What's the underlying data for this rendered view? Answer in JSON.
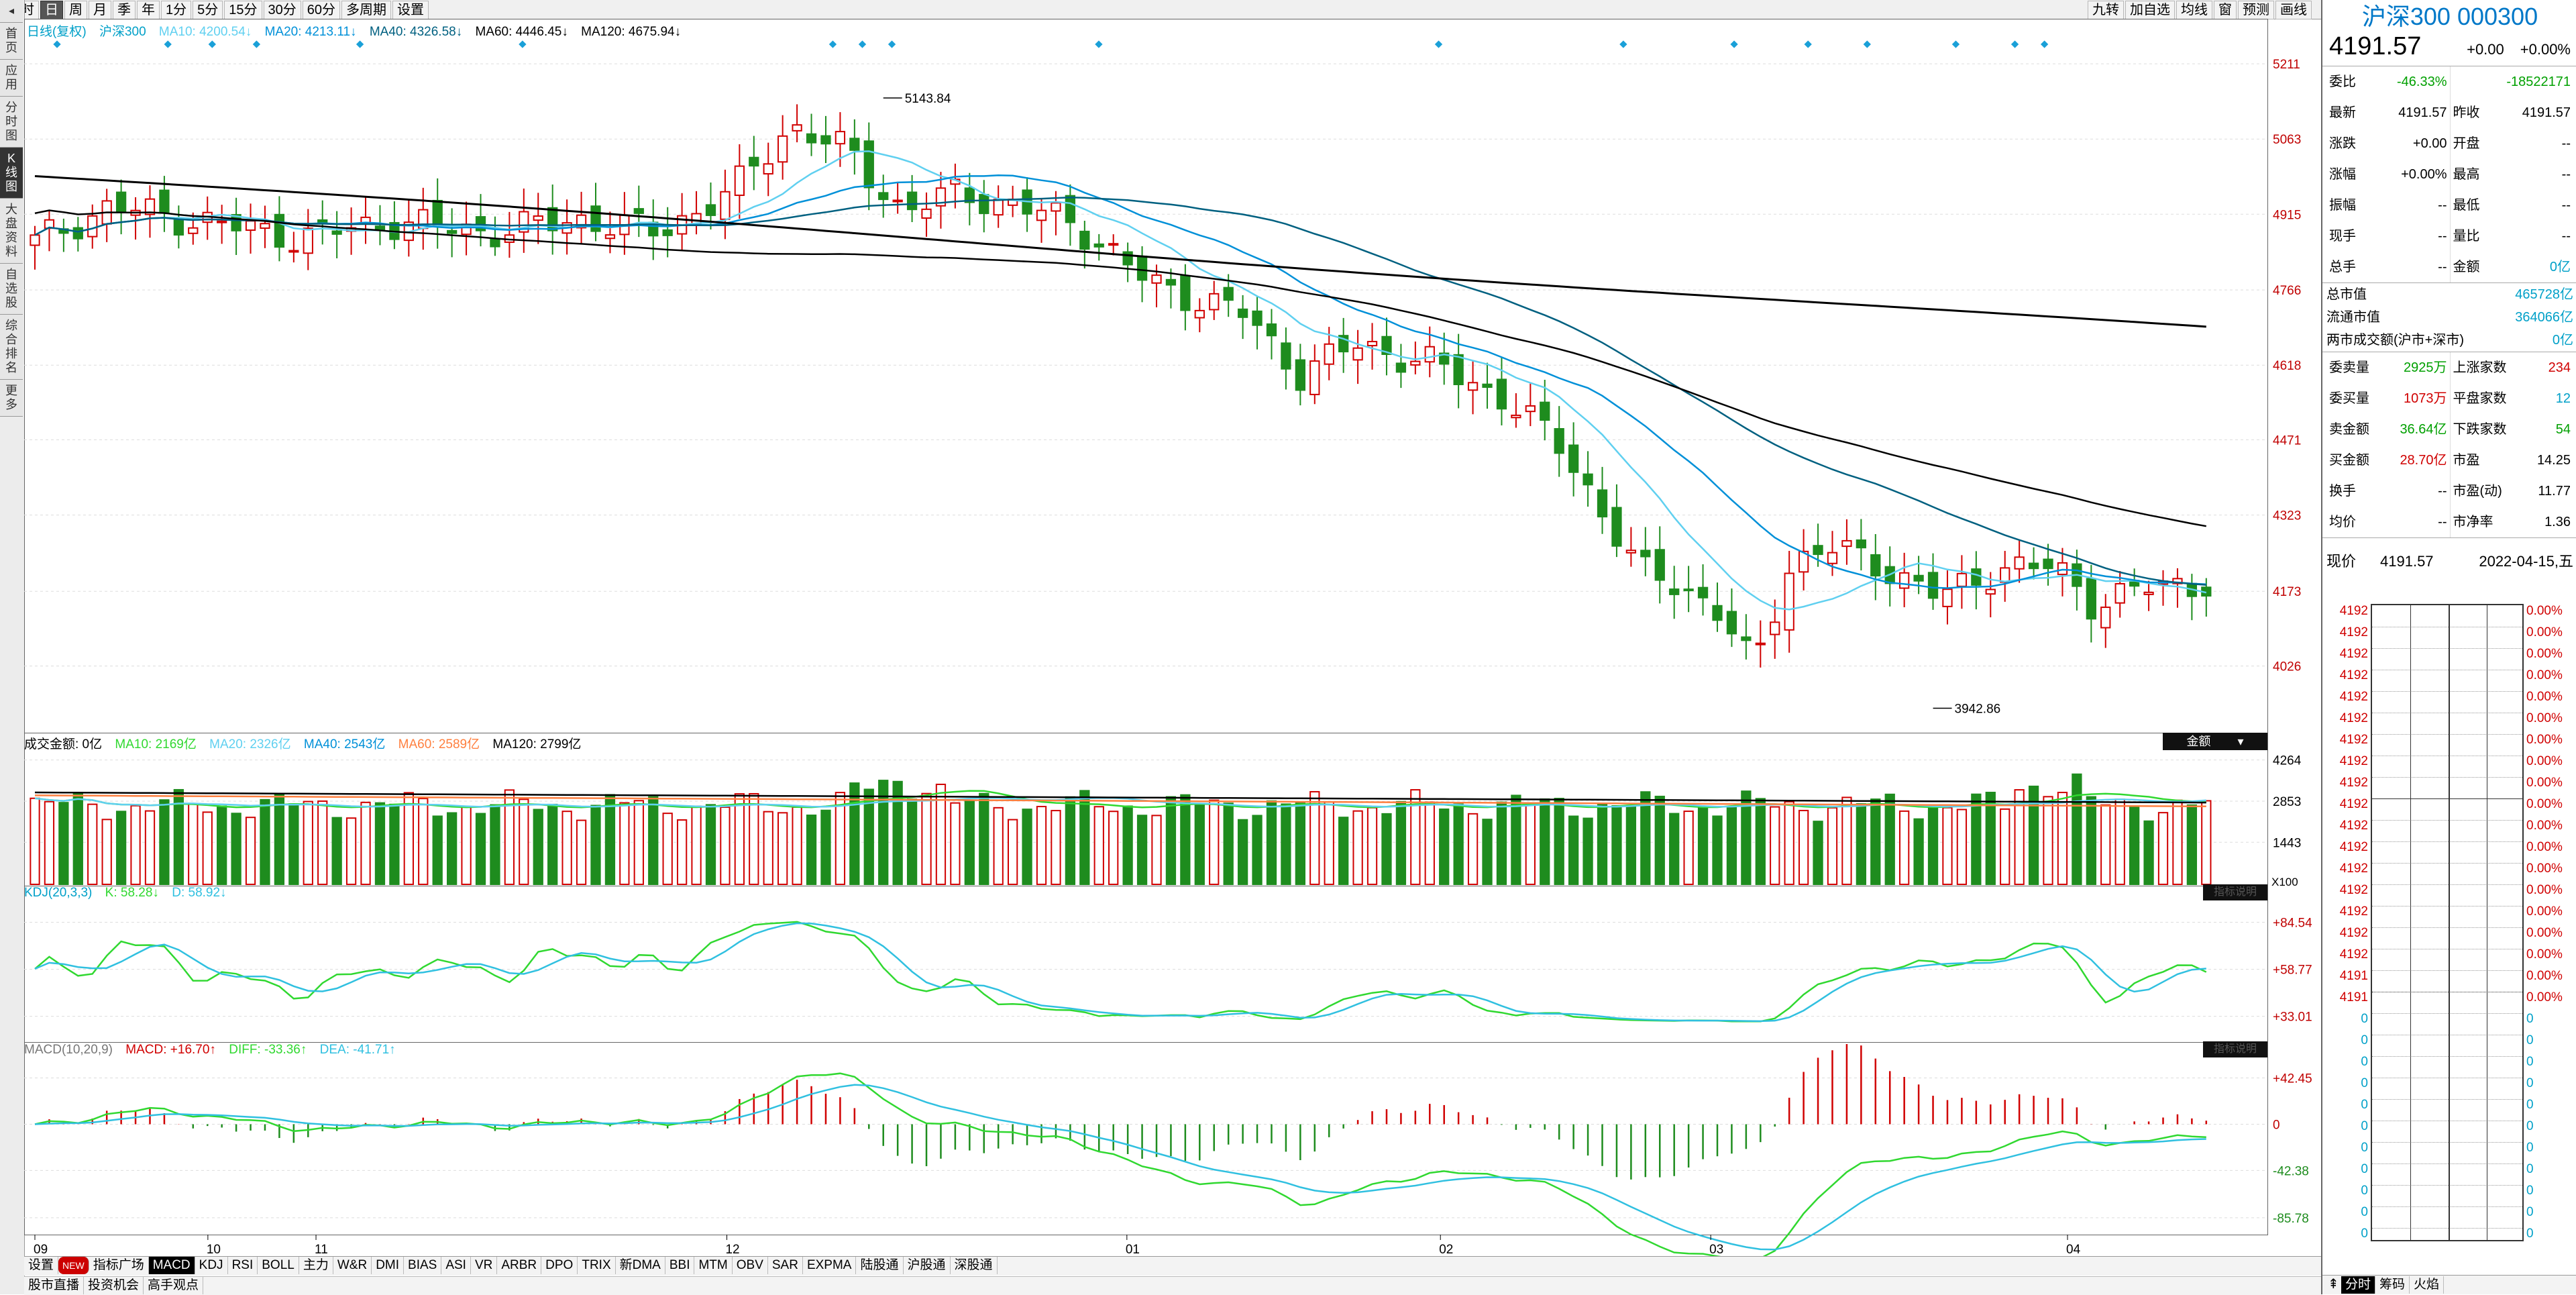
{
  "toolbar": {
    "buttons": [
      "分时",
      "日",
      "周",
      "月",
      "季",
      "年",
      "1分",
      "5分",
      "15分",
      "30分",
      "60分",
      "多周期",
      "设置"
    ],
    "selected": "日",
    "right_buttons": [
      "九转",
      "加自选",
      "均线",
      "窗",
      "预测",
      "画线"
    ]
  },
  "left_nav": [
    "首页",
    "应用",
    "分时图",
    "K线图",
    "大盘资料",
    "自选股",
    "综合排名",
    "更多"
  ],
  "left_nav_selected": "K线图",
  "main_legend": {
    "title": "日线(复权)",
    "name": "沪深300",
    "ma10": "MA10: 4200.54↓",
    "ma20": "MA20: 4213.11↓",
    "ma40": "MA40: 4326.58↓",
    "ma60": "MA60: 4446.45↓",
    "ma120": "MA120: 4675.94↓"
  },
  "price_axis": [
    "5211",
    "5063",
    "4915",
    "4766",
    "4618",
    "4471",
    "4323",
    "4173",
    "4026"
  ],
  "annotations": {
    "high": "5143.84",
    "low": "3942.86"
  },
  "volume_legend": {
    "label": "成交金额: 0亿",
    "ma10": "MA10: 2169亿",
    "ma20": "MA20: 2326亿",
    "ma40": "MA40: 2543亿",
    "ma60": "MA60: 2589亿",
    "ma120": "MA120: 2799亿",
    "dropdown": "金额"
  },
  "volume_axis": [
    "4264",
    "2853",
    "1443"
  ],
  "volume_unit": "X100",
  "kdj_legend": {
    "title": "KDJ(20,3,3)",
    "k": "K: 58.28↓",
    "d": "D: 58.92↓"
  },
  "kdj_axis": [
    "+84.54",
    "+58.77",
    "+33.01"
  ],
  "macd_legend": {
    "title": "MACD(10,20,9)",
    "macd": "MACD: +16.70↑",
    "diff": "DIFF: -33.36↑",
    "dea": "DEA: -41.71↑"
  },
  "macd_axis": [
    "+42.45",
    "0",
    "-42.38",
    "-85.78"
  ],
  "indicator_tag": "指标说明",
  "time_axis": [
    "09",
    "10",
    "11",
    "12",
    "01",
    "02",
    "03",
    "04"
  ],
  "bottom_tabs": [
    "设置",
    "NEW",
    "指标广场",
    "MACD",
    "KDJ",
    "RSI",
    "BOLL",
    "主力",
    "W&R",
    "DMI",
    "BIAS",
    "ASI",
    "VR",
    "ARBR",
    "DPO",
    "TRIX",
    "新DMA",
    "BBI",
    "MTM",
    "OBV",
    "SAR",
    "EXPMA",
    "陆股通",
    "沪股通",
    "深股通"
  ],
  "bottom_selected": "MACD",
  "status_tabs": [
    "股市直播",
    "投资机会",
    "高手观点"
  ],
  "stock": {
    "title": "沪深300 000300",
    "price": "4191.57",
    "change": "+0.00",
    "pct": "+0.00%"
  },
  "quote_rows": [
    [
      {
        "l": "委比",
        "v": "-46.33%",
        "c": "green"
      },
      {
        "l": "",
        "v": "-18522171",
        "c": "green"
      }
    ],
    [
      {
        "l": "最新",
        "v": "4191.57",
        "c": ""
      },
      {
        "l": "昨收",
        "v": "4191.57",
        "c": ""
      }
    ],
    [
      {
        "l": "涨跌",
        "v": "+0.00",
        "c": ""
      },
      {
        "l": "开盘",
        "v": "--",
        "c": ""
      }
    ],
    [
      {
        "l": "涨幅",
        "v": "+0.00%",
        "c": ""
      },
      {
        "l": "最高",
        "v": "--",
        "c": ""
      }
    ],
    [
      {
        "l": "振幅",
        "v": "--",
        "c": ""
      },
      {
        "l": "最低",
        "v": "--",
        "c": ""
      }
    ],
    [
      {
        "l": "现手",
        "v": "--",
        "c": ""
      },
      {
        "l": "量比",
        "v": "--",
        "c": ""
      }
    ],
    [
      {
        "l": "总手",
        "v": "--",
        "c": ""
      },
      {
        "l": "金额",
        "v": "0亿",
        "c": "cyan"
      }
    ]
  ],
  "market_rows": [
    {
      "l": "总市值",
      "v": "465728亿",
      "c": "cyan"
    },
    {
      "l": "流通市值",
      "v": "364066亿",
      "c": "cyan"
    },
    {
      "l": "两市成交额(沪市+深市)",
      "v": "0亿",
      "c": "cyan"
    }
  ],
  "breadth_rows": [
    [
      {
        "l": "委卖量",
        "v": "2925万",
        "c": "green"
      },
      {
        "l": "上涨家数",
        "v": "234",
        "c": "red"
      }
    ],
    [
      {
        "l": "委买量",
        "v": "1073万",
        "c": "red"
      },
      {
        "l": "平盘家数",
        "v": "12",
        "c": "cyan"
      }
    ],
    [
      {
        "l": "卖金额",
        "v": "36.64亿",
        "c": "green"
      },
      {
        "l": "下跌家数",
        "v": "54",
        "c": "green"
      }
    ],
    [
      {
        "l": "买金额",
        "v": "28.70亿",
        "c": "red"
      },
      {
        "l": "市盈",
        "v": "14.25",
        "c": ""
      }
    ],
    [
      {
        "l": "换手",
        "v": "--",
        "c": ""
      },
      {
        "l": "市盈(动)",
        "v": "11.77",
        "c": ""
      }
    ],
    [
      {
        "l": "均价",
        "v": "--",
        "c": ""
      },
      {
        "l": "市净率",
        "v": "1.36",
        "c": ""
      }
    ]
  ],
  "now_row": {
    "l": "现价",
    "v": "4191.57",
    "date": "2022-04-15,五"
  },
  "mini_left": [
    "4192",
    "4192",
    "4192",
    "4192",
    "4192",
    "4192",
    "4192",
    "4192",
    "4192",
    "4192",
    "4192",
    "4192",
    "4192",
    "4192",
    "4192",
    "4192",
    "4192",
    "4191",
    "4191",
    "0",
    "0",
    "0",
    "0",
    "0",
    "0",
    "0",
    "0",
    "0",
    "0",
    "0"
  ],
  "mini_right": [
    "0.00%",
    "0.00%",
    "0.00%",
    "0.00%",
    "0.00%",
    "0.00%",
    "0.00%",
    "0.00%",
    "0.00%",
    "0.00%",
    "0.00%",
    "0.00%",
    "0.00%",
    "0.00%",
    "0.00%",
    "0.00%",
    "0.00%",
    "0.00%",
    "0.00%",
    "0",
    "0",
    "0",
    "0",
    "0",
    "0",
    "0",
    "0",
    "0",
    "0",
    "0"
  ],
  "side_tabs": [
    "分时",
    "筹码",
    "火焰"
  ],
  "colors": {
    "up": "#d00000",
    "down": "#1e8c1e",
    "ma10": "#60d0f0",
    "ma20": "#0090d8",
    "ma40": "#006080",
    "ma60": "#ff8040",
    "ma120": "#000000",
    "k": "#30d830",
    "d": "#30c0e0"
  }
}
